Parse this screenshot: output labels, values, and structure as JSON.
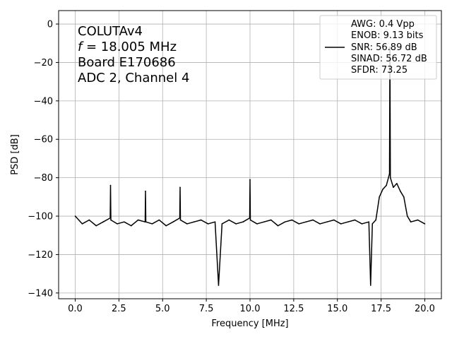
{
  "chart_data": {
    "type": "line",
    "xlabel": "Frequency [MHz]",
    "ylabel": "PSD [dB]",
    "xlim": [
      -0.95,
      20.95
    ],
    "ylim": [
      -143,
      7
    ],
    "xticks": [
      0.0,
      2.5,
      5.0,
      7.5,
      10.0,
      12.5,
      15.0,
      17.5,
      20.0
    ],
    "xtick_labels": [
      "0.0",
      "2.5",
      "5.0",
      "7.5",
      "10.0",
      "12.5",
      "15.0",
      "17.5",
      "20.0"
    ],
    "yticks": [
      0,
      -20,
      -40,
      -60,
      -80,
      -100,
      -120,
      -140
    ],
    "ytick_labels": [
      "0",
      "−20",
      "−40",
      "−60",
      "−80",
      "−100",
      "−120",
      "−140"
    ],
    "grid": true,
    "line_color": "#000000",
    "annotation_lines": [
      "COLUTAv4",
      "= 18.005 MHz",
      "Board E170686",
      "ADC 2, Channel 4"
    ],
    "annotation_symbol": "f",
    "legend": {
      "placement": "top-right",
      "lines": [
        "AWG: 0.4 Vpp",
        "ENOB: 9.13 bits",
        "SNR: 56.89 dB",
        "SINAD: 56.72 dB",
        "SFDR: 73.25"
      ]
    },
    "series": [
      {
        "x": [
          0.0,
          0.4,
          0.8,
          1.2,
          1.6,
          2.0,
          2.02,
          2.04,
          2.4,
          2.8,
          3.2,
          3.6,
          4.0,
          4.02,
          4.04,
          4.4,
          4.8,
          5.2,
          5.6,
          5.98,
          6.0,
          6.02,
          6.4,
          6.8,
          7.2,
          7.6,
          8.0,
          8.2,
          8.4,
          8.8,
          9.2,
          9.6,
          9.98,
          10.0,
          10.02,
          10.4,
          10.8,
          11.2,
          11.6,
          12.0,
          12.4,
          12.8,
          13.2,
          13.6,
          14.0,
          14.4,
          14.8,
          15.2,
          15.6,
          16.0,
          16.4,
          16.8,
          16.9,
          17.0,
          17.2,
          17.4,
          17.6,
          17.8,
          17.98,
          18.005,
          18.03,
          18.2,
          18.4,
          18.6,
          18.8,
          19.0,
          19.2,
          19.6,
          20.0
        ],
        "y": [
          -100,
          -104,
          -102,
          -105,
          -103,
          -101,
          -84,
          -102,
          -104,
          -103,
          -105,
          -102,
          -103,
          -87,
          -103,
          -104,
          -102,
          -105,
          -103,
          -101,
          -85,
          -102,
          -104,
          -103,
          -102,
          -104,
          -103,
          -136,
          -104,
          -102,
          -104,
          -103,
          -101,
          -81,
          -102,
          -104,
          -103,
          -102,
          -105,
          -103,
          -102,
          -104,
          -103,
          -102,
          -104,
          -103,
          -102,
          -104,
          -103,
          -102,
          -104,
          -103,
          -136,
          -104,
          -102,
          -90,
          -86,
          -84,
          -78,
          -12,
          -80,
          -85,
          -83,
          -87,
          -90,
          -100,
          -103,
          -102,
          -104
        ]
      }
    ]
  }
}
